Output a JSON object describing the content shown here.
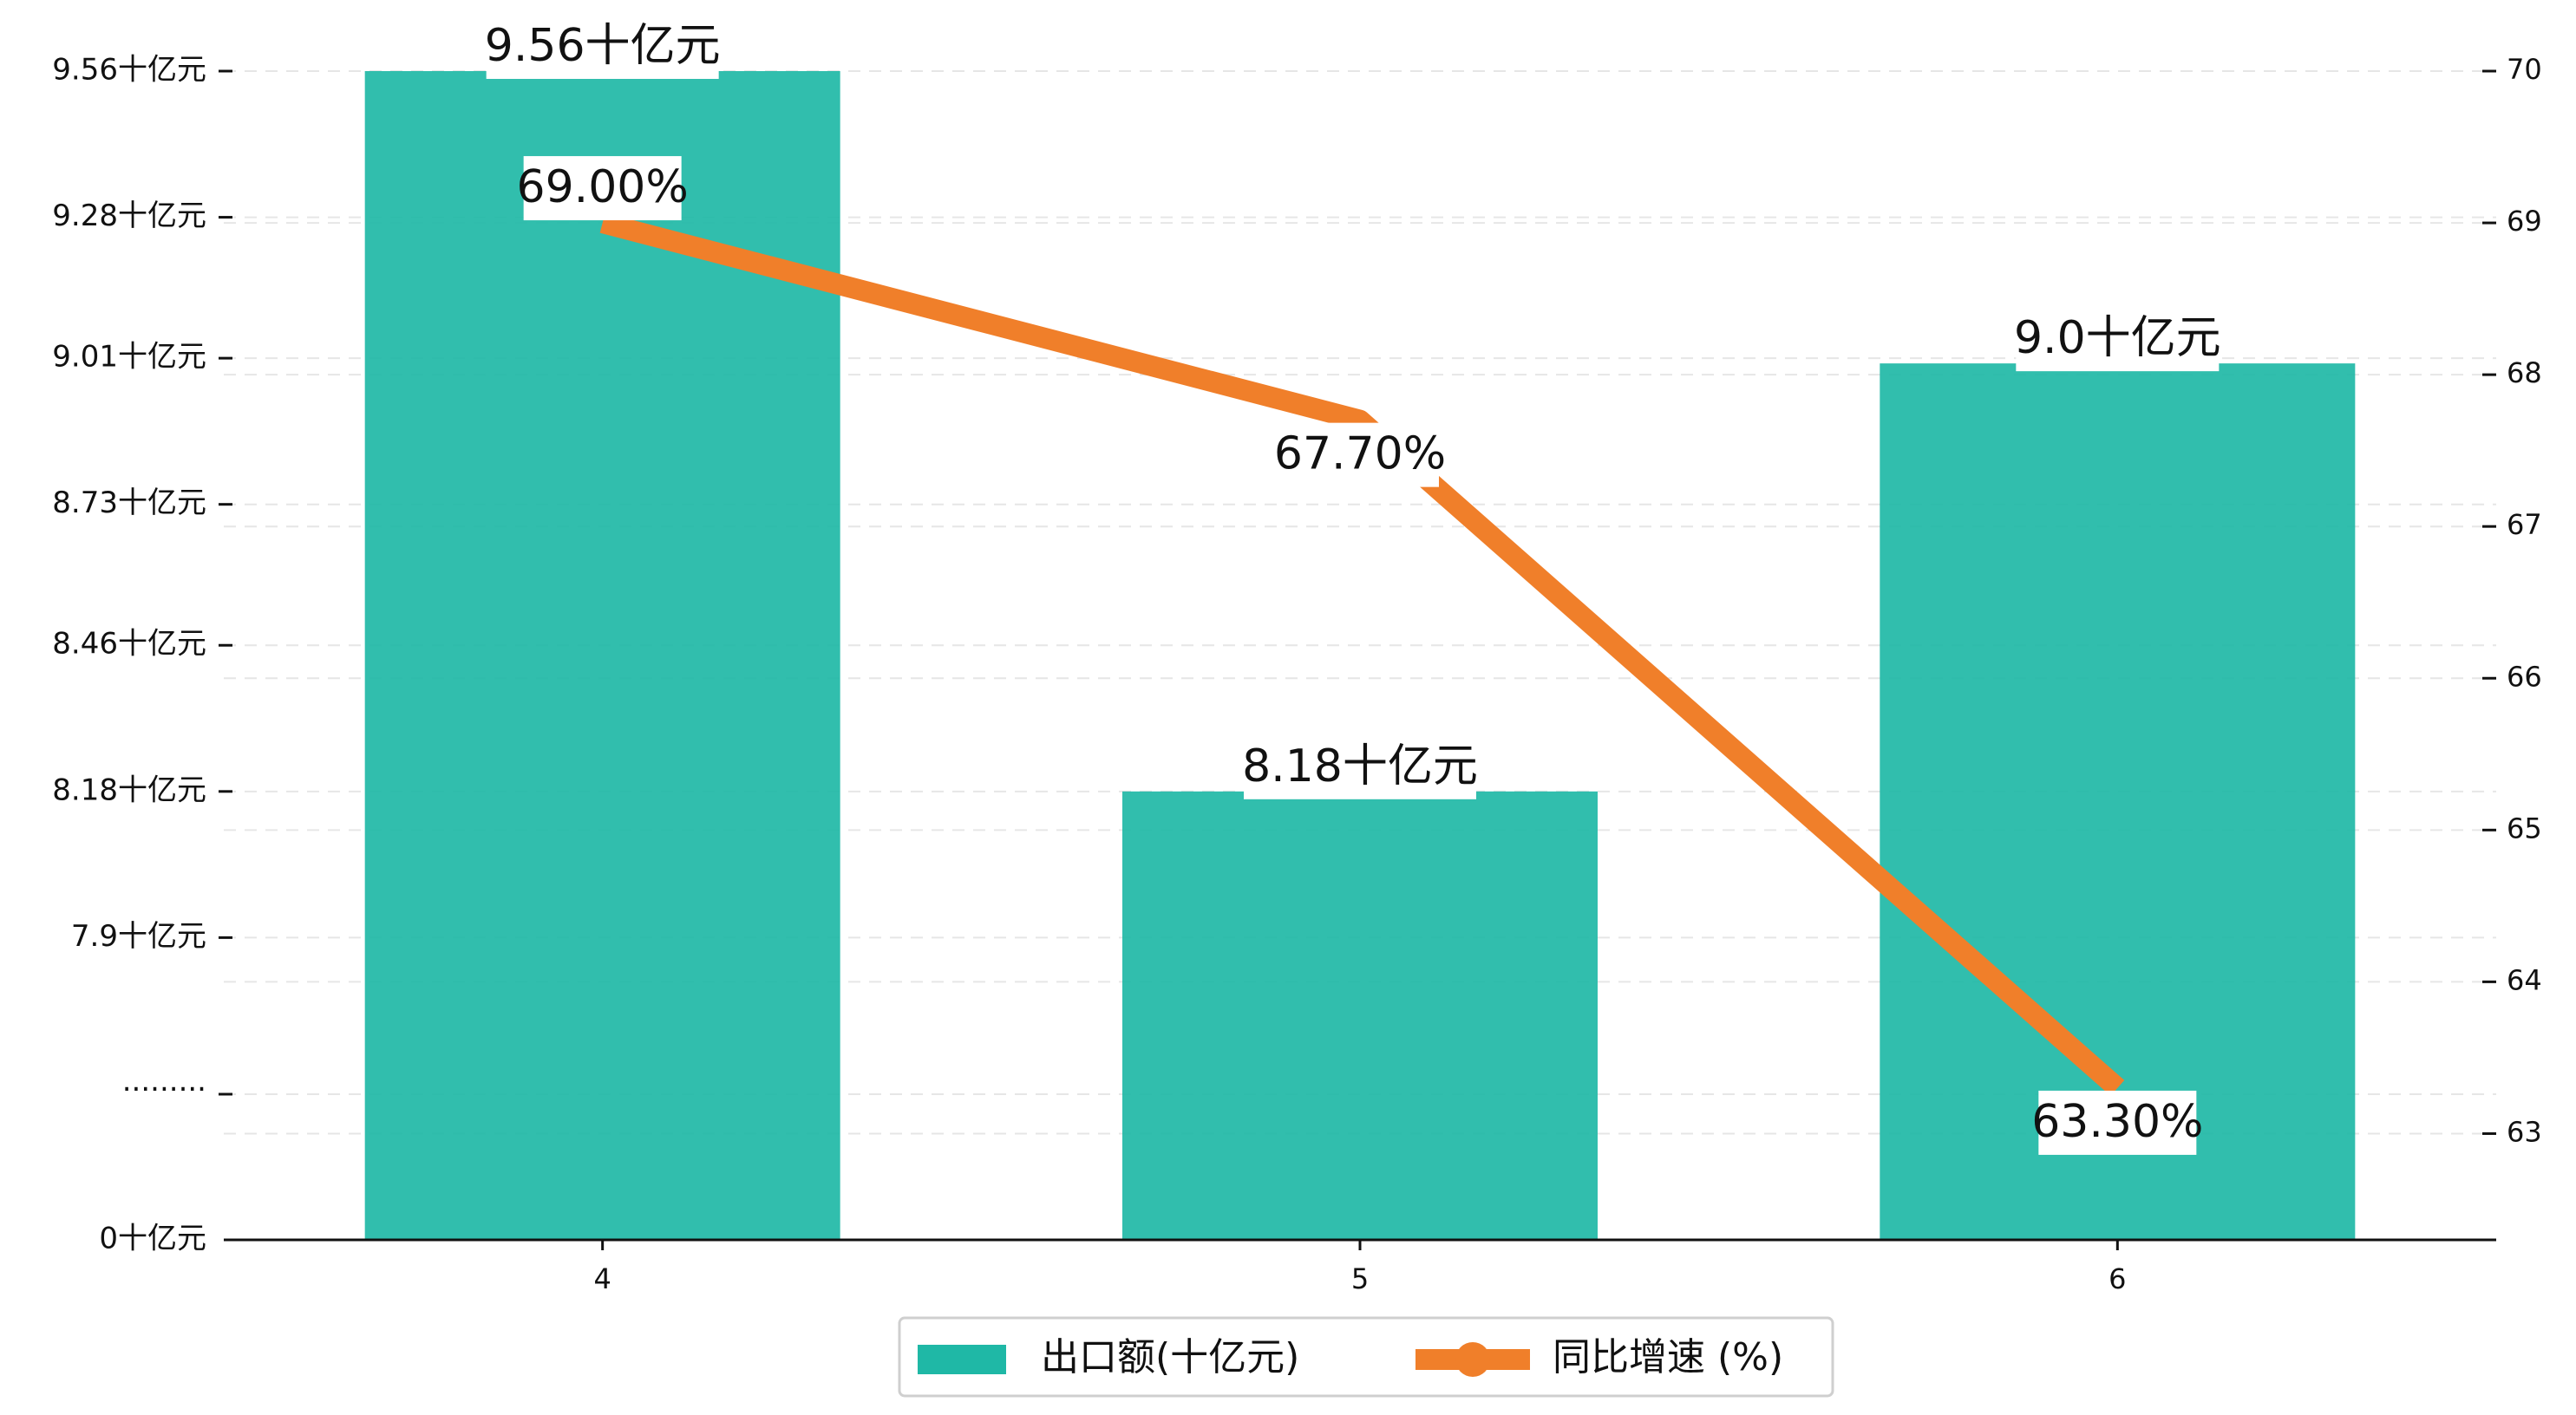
{
  "chart_data": {
    "type": "bar",
    "categories": [
      "4",
      "5",
      "6"
    ],
    "series": [
      {
        "name": "出口额(十亿元)",
        "kind": "bar",
        "axis": "left",
        "color": "#1fb8a6",
        "values": [
          9.56,
          8.18,
          9.0
        ],
        "labels": [
          "9.56十亿元",
          "8.18十亿元",
          "9.0十亿元"
        ]
      },
      {
        "name": "同比增速 (%)",
        "kind": "line",
        "axis": "right",
        "color": "#f07f2a",
        "values": [
          69.0,
          67.7,
          63.3
        ],
        "labels": [
          "69.00%",
          "67.70%",
          "63.30%"
        ]
      }
    ],
    "y_left": {
      "broken_axis": true,
      "range": [
        7.6,
        9.56
      ],
      "ticks": [
        {
          "value": 9.56,
          "label": "9.56十亿元"
        },
        {
          "value": 9.28,
          "label": "9.28十亿元"
        },
        {
          "value": 9.01,
          "label": "9.01十亿元"
        },
        {
          "value": 8.73,
          "label": "8.73十亿元"
        },
        {
          "value": 8.46,
          "label": "8.46十亿元"
        },
        {
          "value": 8.18,
          "label": "8.18十亿元"
        },
        {
          "value": 7.9,
          "label": "7.9十亿元"
        }
      ],
      "break_label": "·········",
      "zero_label": "0十亿元"
    },
    "y_right": {
      "range": [
        62.3,
        70.0
      ],
      "ticks": [
        63,
        64,
        65,
        66,
        67,
        68,
        69,
        70
      ]
    },
    "grid": "dashed-horizontal",
    "legend_position": "bottom-center"
  }
}
